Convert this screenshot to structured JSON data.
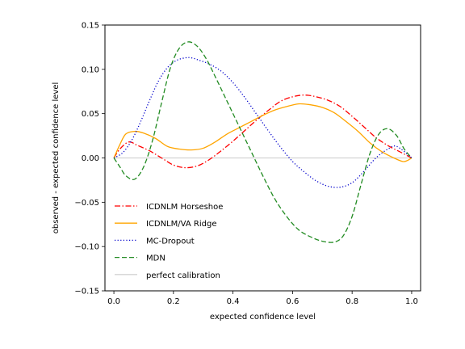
{
  "chart_data": {
    "type": "line",
    "title": "",
    "xlabel": "expected confidence level",
    "ylabel": "observed - expected confidence level",
    "xlim": [
      -0.03,
      1.03
    ],
    "ylim": [
      -0.15,
      0.15
    ],
    "xticks": [
      0.0,
      0.2,
      0.4,
      0.6,
      0.8,
      1.0
    ],
    "xtick_labels": [
      "0.0",
      "0.2",
      "0.4",
      "0.6",
      "0.8",
      "1.0"
    ],
    "yticks": [
      -0.15,
      -0.1,
      -0.05,
      0.0,
      0.05,
      0.1,
      0.15
    ],
    "ytick_labels": [
      "−0.15",
      "−0.10",
      "−0.05",
      "0.00",
      "0.05",
      "0.10",
      "0.15"
    ],
    "grid": false,
    "legend_position": "lower-left",
    "series": [
      {
        "name": "ICDNLM Horseshoe",
        "color": "#ff0000",
        "dash": "dashdot",
        "x": [
          0.0,
          0.02,
          0.05,
          0.08,
          0.12,
          0.16,
          0.2,
          0.24,
          0.28,
          0.32,
          0.36,
          0.4,
          0.44,
          0.48,
          0.52,
          0.56,
          0.6,
          0.64,
          0.68,
          0.72,
          0.76,
          0.8,
          0.84,
          0.88,
          0.92,
          0.96,
          1.0
        ],
        "y": [
          0.0,
          0.01,
          0.018,
          0.014,
          0.008,
          0.0,
          -0.008,
          -0.011,
          -0.009,
          -0.002,
          0.008,
          0.019,
          0.031,
          0.043,
          0.054,
          0.064,
          0.069,
          0.071,
          0.069,
          0.065,
          0.058,
          0.047,
          0.035,
          0.023,
          0.014,
          0.007,
          0.0
        ]
      },
      {
        "name": "ICDNLM/VA Ridge",
        "color": "#ffa500",
        "dash": "solid",
        "x": [
          0.0,
          0.02,
          0.04,
          0.07,
          0.1,
          0.14,
          0.18,
          0.22,
          0.26,
          0.3,
          0.34,
          0.38,
          0.42,
          0.46,
          0.5,
          0.54,
          0.58,
          0.62,
          0.66,
          0.7,
          0.74,
          0.78,
          0.82,
          0.86,
          0.9,
          0.94,
          0.97,
          0.985,
          1.0
        ],
        "y": [
          0.0,
          0.015,
          0.027,
          0.03,
          0.028,
          0.022,
          0.013,
          0.01,
          0.009,
          0.011,
          0.018,
          0.027,
          0.034,
          0.041,
          0.048,
          0.054,
          0.058,
          0.061,
          0.06,
          0.057,
          0.051,
          0.041,
          0.03,
          0.017,
          0.007,
          0.0,
          -0.004,
          -0.003,
          0.0
        ]
      },
      {
        "name": "MC-Dropout",
        "color": "#0000cc",
        "dash": "dotted",
        "x": [
          0.0,
          0.03,
          0.06,
          0.09,
          0.12,
          0.15,
          0.18,
          0.21,
          0.24,
          0.26,
          0.28,
          0.32,
          0.36,
          0.4,
          0.44,
          0.48,
          0.52,
          0.56,
          0.6,
          0.64,
          0.68,
          0.72,
          0.76,
          0.8,
          0.84,
          0.88,
          0.92,
          0.95,
          1.0
        ],
        "y": [
          0.0,
          0.006,
          0.02,
          0.041,
          0.065,
          0.087,
          0.102,
          0.11,
          0.113,
          0.113,
          0.111,
          0.106,
          0.098,
          0.085,
          0.068,
          0.049,
          0.03,
          0.012,
          -0.004,
          -0.016,
          -0.026,
          -0.032,
          -0.033,
          -0.028,
          -0.015,
          0.0,
          0.01,
          0.013,
          0.0
        ]
      },
      {
        "name": "MDN",
        "color": "#228b22",
        "dash": "dashed",
        "x": [
          0.0,
          0.02,
          0.04,
          0.07,
          0.1,
          0.13,
          0.16,
          0.19,
          0.22,
          0.25,
          0.28,
          0.31,
          0.34,
          0.38,
          0.42,
          0.46,
          0.5,
          0.54,
          0.58,
          0.62,
          0.66,
          0.7,
          0.74,
          0.77,
          0.8,
          0.83,
          0.86,
          0.89,
          0.92,
          0.95,
          0.975,
          1.0
        ],
        "y": [
          0.0,
          -0.01,
          -0.02,
          -0.024,
          -0.01,
          0.02,
          0.062,
          0.102,
          0.124,
          0.131,
          0.126,
          0.112,
          0.092,
          0.064,
          0.036,
          0.008,
          -0.02,
          -0.046,
          -0.066,
          -0.081,
          -0.089,
          -0.094,
          -0.095,
          -0.088,
          -0.066,
          -0.03,
          0.005,
          0.027,
          0.033,
          0.025,
          0.01,
          0.0
        ]
      },
      {
        "name": "perfect calibration",
        "color": "#d3d3d3",
        "dash": "solid",
        "x": [
          0.0,
          1.0
        ],
        "y": [
          0.0,
          0.0
        ]
      }
    ]
  }
}
